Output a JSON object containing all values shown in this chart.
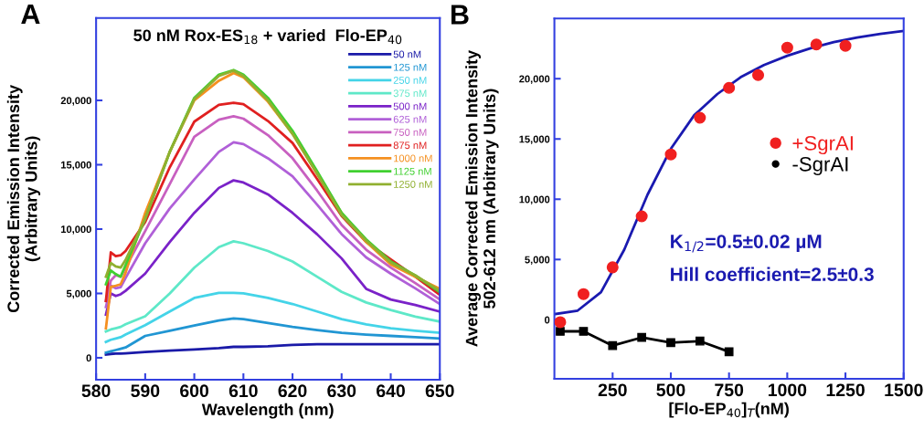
{
  "chart_data": [
    {
      "type": "line",
      "title": "50 nM Rox-ES$_{18}$ + varied  Flo-EP$_{40}$",
      "xlabel": "Wavelength (nm)",
      "ylabel": "Corrected Emission Intensity\n(Arbitrary Units)",
      "annotations": [
        "A"
      ],
      "x": [
        582,
        583,
        584,
        585,
        586,
        590,
        595,
        600,
        605,
        608,
        610,
        615,
        620,
        625,
        630,
        635,
        640,
        645,
        650
      ],
      "xlim": [
        580,
        650
      ],
      "xticks": [
        580,
        590,
        600,
        610,
        620,
        630,
        640,
        650
      ],
      "ylim": [
        -1700,
        26400
      ],
      "yticks": [
        0,
        {
          "value": 5000,
          "label": "5,000"
        },
        {
          "value": 10000,
          "label": "10,000"
        },
        {
          "value": 15000,
          "label": "15,000"
        },
        {
          "value": 20000,
          "label": "20,000"
        }
      ],
      "legend": "top right",
      "grid": false,
      "marker": "none",
      "line_style": "solid",
      "series": [
        {
          "name": "50 nM",
          "color": "#1a1aa8",
          "values": [
            250,
            300,
            320,
            330,
            350,
            450,
            550,
            650,
            750,
            850,
            850,
            900,
            1000,
            1050,
            1050,
            1050,
            1050,
            1050,
            1050
          ]
        },
        {
          "name": "125 nM",
          "color": "#2196d3",
          "values": [
            400,
            500,
            600,
            700,
            800,
            1700,
            2100,
            2500,
            2900,
            3050,
            3000,
            2700,
            2400,
            2150,
            1940,
            1800,
            1700,
            1600,
            1500
          ]
        },
        {
          "name": "250 nM",
          "color": "#44d4e8",
          "values": [
            1230,
            1400,
            1500,
            1600,
            1800,
            2530,
            3600,
            4650,
            5050,
            5050,
            5000,
            4650,
            4180,
            3600,
            3000,
            2600,
            2290,
            2100,
            1940
          ]
        },
        {
          "name": "375 nM",
          "color": "#5ee8c8",
          "values": [
            2050,
            2200,
            2300,
            2400,
            2600,
            3230,
            5000,
            7000,
            8600,
            9050,
            8900,
            8300,
            7480,
            6300,
            5120,
            4300,
            3710,
            3200,
            2810
          ]
        },
        {
          "name": "500 nM",
          "color": "#7a22c8",
          "values": [
            3350,
            5000,
            4800,
            4930,
            5200,
            6540,
            9000,
            11260,
            13200,
            13790,
            13620,
            12700,
            11260,
            9600,
            7720,
            5360,
            4530,
            4100,
            3590
          ]
        },
        {
          "name": "625 nM",
          "color": "#b060d8",
          "values": [
            3940,
            5600,
            5400,
            5480,
            6200,
            8900,
            11600,
            13860,
            16000,
            16740,
            16600,
            15500,
            14100,
            11900,
            9610,
            7800,
            6540,
            5400,
            4180
          ]
        },
        {
          "name": "750 nM",
          "color": "#c860c0",
          "values": [
            4420,
            6000,
            6420,
            6300,
            7000,
            9850,
            13500,
            17170,
            18500,
            18770,
            18580,
            17300,
            15510,
            13000,
            10320,
            8400,
            7010,
            5800,
            4530
          ]
        },
        {
          "name": "875 nM",
          "color": "#e02020",
          "values": [
            4420,
            8190,
            7900,
            7960,
            8300,
            10550,
            14800,
            18350,
            19650,
            19810,
            19700,
            18400,
            16690,
            13900,
            11030,
            9000,
            7650,
            6300,
            4890
          ]
        },
        {
          "name": "1000 nM",
          "color": "#f59020",
          "values": [
            2290,
            5500,
            5600,
            5710,
            6600,
            11260,
            16000,
            20000,
            21530,
            22120,
            21800,
            19900,
            17400,
            14300,
            11260,
            9000,
            7250,
            6300,
            5360
          ]
        },
        {
          "name": "1125 nM",
          "color": "#40d030",
          "values": [
            5710,
            6780,
            6500,
            6300,
            7200,
            10790,
            16000,
            20200,
            22000,
            22360,
            22000,
            20200,
            17640,
            14500,
            11260,
            9200,
            7490,
            6400,
            5100
          ]
        },
        {
          "name": "1250 nM",
          "color": "#90b030",
          "values": [
            6300,
            7370,
            7100,
            7010,
            7600,
            10790,
            16000,
            20100,
            21900,
            22310,
            21900,
            20000,
            17400,
            14300,
            11100,
            9100,
            7400,
            6400,
            5200
          ]
        }
      ]
    },
    {
      "type": "scatter",
      "xlabel": "[Flo-EP$_{40}$]$_{T}$(nM)",
      "ylabel": "Average Corrected Emission Intensity\n502-612 nm (Arbitrary Units)",
      "annotations": [
        "B",
        "K$_{1/2}$=0.5±0.02 µM",
        "Hill coefficient=2.5±0.3"
      ],
      "xlim": [
        0,
        1500
      ],
      "xticks": [
        250,
        500,
        750,
        1000,
        1250,
        1500
      ],
      "ylim": [
        -4900,
        25000
      ],
      "yticks": [
        0,
        {
          "value": 5000,
          "label": "5,000"
        },
        {
          "value": 10000,
          "label": "10,000"
        },
        {
          "value": 15000,
          "label": "15,000"
        },
        {
          "value": 20000,
          "label": "20,000"
        }
      ],
      "legend": "right",
      "grid": false,
      "series": [
        {
          "type": "line",
          "color": "#1a1ab0",
          "marker": "none",
          "x": [
            0,
            100,
            200,
            300,
            400,
            500,
            600,
            700,
            800,
            900,
            1000,
            1100,
            1200,
            1300,
            1400,
            1500
          ],
          "values": [
            460,
            760,
            2280,
            5820,
            10380,
            14180,
            16960,
            18730,
            20130,
            21140,
            21900,
            22530,
            23040,
            23420,
            23720,
            23970
          ]
        },
        {
          "type": "scatter",
          "name": "+SgrAI",
          "color": "#f02020",
          "marker": "circle",
          "x": [
            25,
            125,
            250,
            375,
            500,
            625,
            750,
            875,
            1000,
            1125,
            1250
          ],
          "values": [
            -200,
            2130,
            4350,
            8580,
            13720,
            16760,
            19240,
            20300,
            22580,
            22840,
            22730
          ]
        },
        {
          "type": "line",
          "name": "-SgrAI",
          "color": "#000000",
          "marker": "square",
          "x": [
            25,
            125,
            250,
            375,
            500,
            625,
            750
          ],
          "values": [
            -960,
            -960,
            -2150,
            -1470,
            -1900,
            -1770,
            -2660
          ]
        }
      ]
    }
  ]
}
